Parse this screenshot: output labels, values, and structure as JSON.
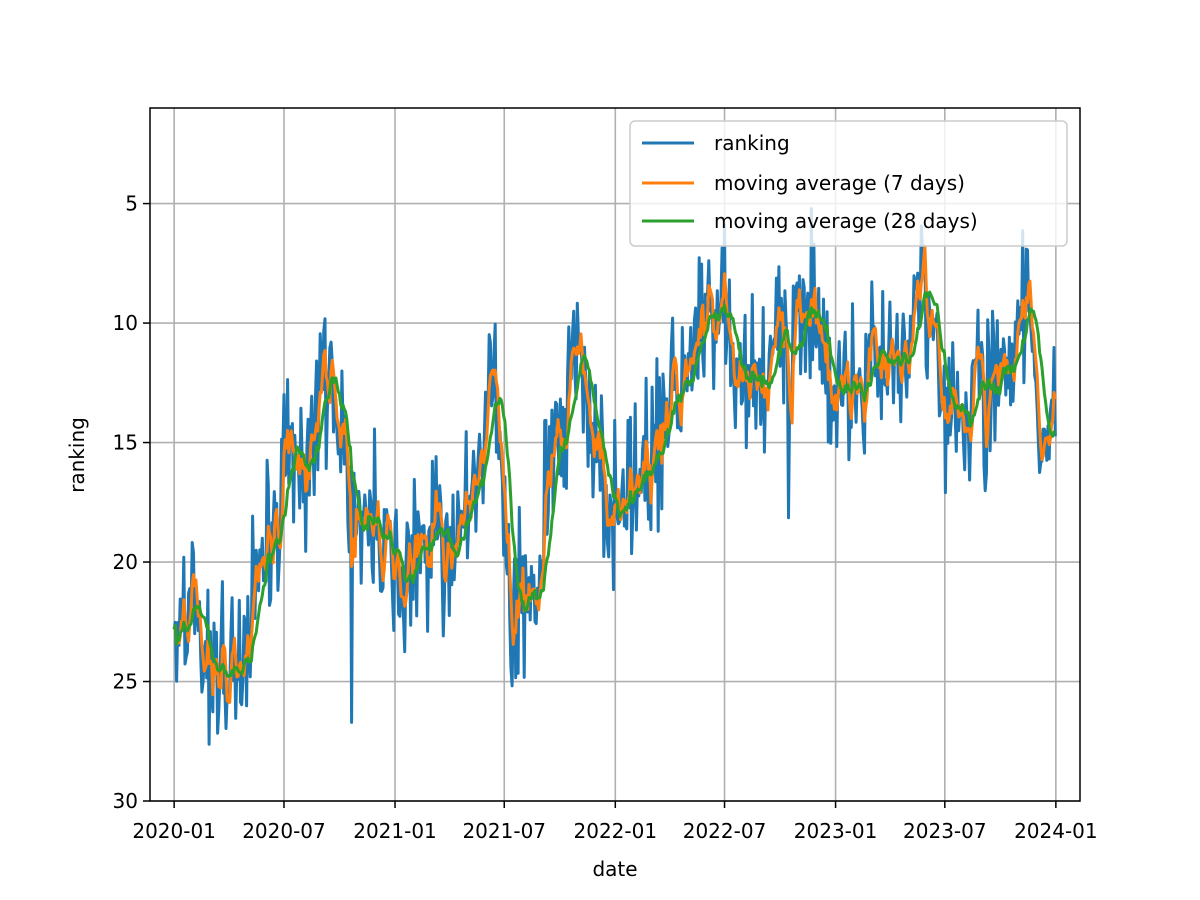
{
  "chart_data": {
    "type": "line",
    "title": "",
    "xlabel": "date",
    "ylabel": "ranking",
    "y_inverted": true,
    "ylim": [
      1,
      30
    ],
    "xlim": [
      "2019-11-22",
      "2024-02-10"
    ],
    "grid": true,
    "legend_position": "top-right",
    "x_ticks": [
      {
        "date": "2020-01-01",
        "label": "2020-01"
      },
      {
        "date": "2020-07-01",
        "label": "2020-07"
      },
      {
        "date": "2021-01-01",
        "label": "2021-01"
      },
      {
        "date": "2021-07-01",
        "label": "2021-07"
      },
      {
        "date": "2022-01-01",
        "label": "2022-01"
      },
      {
        "date": "2022-07-01",
        "label": "2022-07"
      },
      {
        "date": "2023-01-01",
        "label": "2023-01"
      },
      {
        "date": "2023-07-01",
        "label": "2023-07"
      },
      {
        "date": "2024-01-01",
        "label": "2024-01"
      }
    ],
    "y_ticks": [
      {
        "value": 5,
        "label": "5"
      },
      {
        "value": 10,
        "label": "10"
      },
      {
        "value": 15,
        "label": "15"
      },
      {
        "value": 20,
        "label": "20"
      },
      {
        "value": 25,
        "label": "25"
      },
      {
        "value": 30,
        "label": "30"
      }
    ],
    "series": [
      {
        "name": "ranking",
        "color": "#1f77b4"
      },
      {
        "name": "moving average (7 days)",
        "color": "#ff7f0e"
      },
      {
        "name": "moving average (28 days)",
        "color": "#2ca02c"
      }
    ],
    "trend_control_points": [
      {
        "date": "2020-01-01",
        "value": 22.5
      },
      {
        "date": "2020-02-01",
        "value": 21.5
      },
      {
        "date": "2020-03-10",
        "value": 24.8
      },
      {
        "date": "2020-04-15",
        "value": 24.2
      },
      {
        "date": "2020-05-25",
        "value": 20.0
      },
      {
        "date": "2020-07-10",
        "value": 16.0
      },
      {
        "date": "2020-08-20",
        "value": 14.5
      },
      {
        "date": "2020-09-20",
        "value": 12.0
      },
      {
        "date": "2020-10-15",
        "value": 16.5
      },
      {
        "date": "2020-12-20",
        "value": 19.5
      },
      {
        "date": "2021-01-10",
        "value": 22.5
      },
      {
        "date": "2021-02-10",
        "value": 19.5
      },
      {
        "date": "2021-04-15",
        "value": 18.5
      },
      {
        "date": "2021-05-25",
        "value": 15.5
      },
      {
        "date": "2021-06-15",
        "value": 12.0
      },
      {
        "date": "2021-07-15",
        "value": 22.5
      },
      {
        "date": "2021-08-25",
        "value": 21.0
      },
      {
        "date": "2021-09-25",
        "value": 15.0
      },
      {
        "date": "2021-11-01",
        "value": 10.5
      },
      {
        "date": "2021-12-15",
        "value": 17.0
      },
      {
        "date": "2022-01-10",
        "value": 18.5
      },
      {
        "date": "2022-03-01",
        "value": 15.5
      },
      {
        "date": "2022-04-20",
        "value": 12.5
      },
      {
        "date": "2022-06-05",
        "value": 10.0
      },
      {
        "date": "2022-06-28",
        "value": 8.5
      },
      {
        "date": "2022-07-20",
        "value": 12.5
      },
      {
        "date": "2022-08-25",
        "value": 13.0
      },
      {
        "date": "2022-10-10",
        "value": 10.5
      },
      {
        "date": "2022-11-15",
        "value": 8.5
      },
      {
        "date": "2022-12-15",
        "value": 12.0
      },
      {
        "date": "2023-01-20",
        "value": 13.0
      },
      {
        "date": "2023-03-01",
        "value": 11.5
      },
      {
        "date": "2023-04-20",
        "value": 11.0
      },
      {
        "date": "2023-06-05",
        "value": 8.5
      },
      {
        "date": "2023-07-01",
        "value": 13.5
      },
      {
        "date": "2023-08-10",
        "value": 13.0
      },
      {
        "date": "2023-10-20",
        "value": 11.0
      },
      {
        "date": "2023-11-15",
        "value": 9.5
      },
      {
        "date": "2023-12-01",
        "value": 13.5
      },
      {
        "date": "2024-01-01",
        "value": 14.8
      }
    ],
    "noise_amplitude": 2.6
  }
}
